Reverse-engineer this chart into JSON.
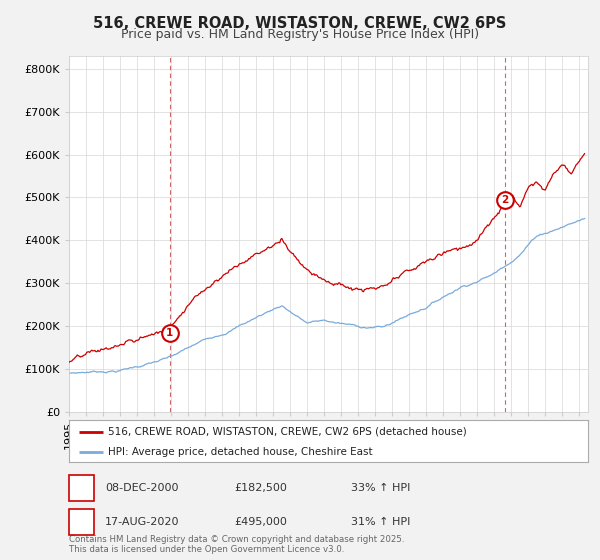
{
  "title": "516, CREWE ROAD, WISTASTON, CREWE, CW2 6PS",
  "subtitle": "Price paid vs. HM Land Registry's House Price Index (HPI)",
  "ylabel_ticks": [
    "£0",
    "£100K",
    "£200K",
    "£300K",
    "£400K",
    "£500K",
    "£600K",
    "£700K",
    "£800K"
  ],
  "ytick_values": [
    0,
    100000,
    200000,
    300000,
    400000,
    500000,
    600000,
    700000,
    800000
  ],
  "ylim": [
    0,
    830000
  ],
  "xlim_start": 1995.0,
  "xlim_end": 2025.5,
  "background_color": "#f2f2f2",
  "plot_bg_color": "#ffffff",
  "red_line_color": "#cc0000",
  "blue_line_color": "#7aabdb",
  "marker1_x": 2000.93,
  "marker1_y": 182500,
  "marker2_x": 2020.63,
  "marker2_y": 495000,
  "marker1_label": "1",
  "marker2_label": "2",
  "legend_line1": "516, CREWE ROAD, WISTASTON, CREWE, CW2 6PS (detached house)",
  "legend_line2": "HPI: Average price, detached house, Cheshire East",
  "ann1_date": "08-DEC-2000",
  "ann1_price": "£182,500",
  "ann1_pct": "33% ↑ HPI",
  "ann2_date": "17-AUG-2020",
  "ann2_price": "£495,000",
  "ann2_pct": "31% ↑ HPI",
  "footer": "Contains HM Land Registry data © Crown copyright and database right 2025.\nThis data is licensed under the Open Government Licence v3.0.",
  "title_fontsize": 10.5,
  "subtitle_fontsize": 9,
  "tick_fontsize": 8
}
